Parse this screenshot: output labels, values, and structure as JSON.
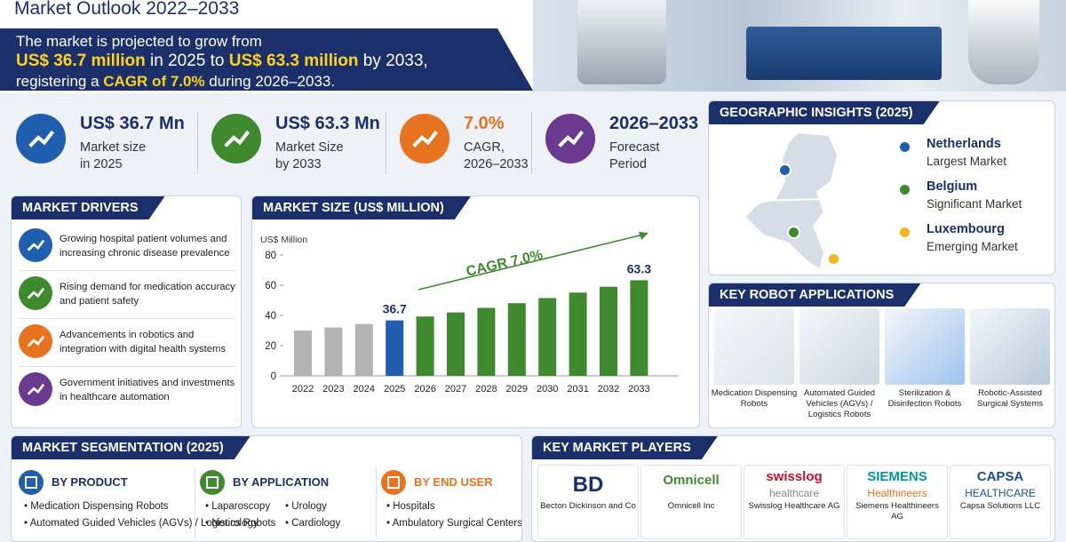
{
  "header": {
    "title": "Market Outlook 2022–2033",
    "lines": [
      [
        {
          "text": "The market is projected to grow from"
        }
      ],
      [
        {
          "text": "US$ 36.7 million",
          "highlight": true
        },
        {
          "text": " in 2025 to "
        },
        {
          "text": "US$ 63.3 million",
          "highlight": true
        },
        {
          "text": " by 2033,"
        }
      ],
      [
        {
          "text": "registering a "
        },
        {
          "text": "CAGR of 7.0%",
          "highlight": true
        },
        {
          "text": " during 2026–2033."
        }
      ]
    ]
  },
  "stats": [
    {
      "value": "US$ 36.7 Mn",
      "label": [
        "Market size",
        "in 2025"
      ],
      "color": "#1f5fae"
    },
    {
      "value": "US$ 63.3 Mn",
      "label": [
        "Market Size",
        "by 2033"
      ],
      "color": "#3f8a2e"
    },
    {
      "value": "7.0%",
      "label": [
        "CAGR,",
        "2026–2033"
      ],
      "color": "#e8731e"
    },
    {
      "value": "2026–2033",
      "label": [
        "Forecast",
        "Period"
      ],
      "color": "#6a3a8e"
    }
  ],
  "drivers": {
    "title": "MARKET DRIVERS",
    "items": [
      {
        "text": "Growing hospital patient volumes and increasing chronic disease prevalence",
        "color": "#1f5fae"
      },
      {
        "text": "Rising demand for medication accuracy and patient safety",
        "color": "#3f8a2e"
      },
      {
        "text": "Advancements in robotics and integration with digital health systems",
        "color": "#e8731e"
      },
      {
        "text": "Government initiatives and investments in healthcare automation",
        "color": "#6a3a8e"
      }
    ]
  },
  "chart_data": {
    "type": "bar",
    "title": "MARKET SIZE (US$ MILLION)",
    "y_label": "US$ Million",
    "categories": [
      "2022",
      "2023",
      "2024",
      "2025",
      "2026",
      "2027",
      "2028",
      "2029",
      "2030",
      "2031",
      "2032",
      "2033"
    ],
    "values": [
      30,
      32,
      34.3,
      36.7,
      39.3,
      42,
      45,
      48.1,
      51.5,
      55.1,
      59,
      63.3
    ],
    "value_labels": [
      null,
      null,
      null,
      "36.7",
      null,
      null,
      null,
      null,
      null,
      null,
      null,
      "63.3"
    ],
    "colors": [
      "#b3b3b3",
      "#b3b3b3",
      "#b3b3b3",
      "#1f5fae",
      "#3f8a2e",
      "#3f8a2e",
      "#3f8a2e",
      "#3f8a2e",
      "#3f8a2e",
      "#3f8a2e",
      "#3f8a2e",
      "#3f8a2e"
    ],
    "ylim": [
      0,
      85
    ],
    "yticks": [
      0,
      20,
      40,
      60,
      80
    ],
    "grid": false,
    "annotation": {
      "text": "CAGR 7.0%",
      "color": "#3f8a2e"
    }
  },
  "geography": {
    "title": "GEOGRAPHIC INSIGHTS (2025)",
    "items": [
      {
        "name": "Netherlands",
        "desc": "Largest Market",
        "color": "#1f5fae"
      },
      {
        "name": "Belgium",
        "desc": "Significant Market",
        "color": "#3f8a2e"
      },
      {
        "name": "Luxembourg",
        "desc": "Emerging Market",
        "color": "#f2b51c"
      }
    ]
  },
  "applications": {
    "title": "KEY ROBOT APPLICATIONS",
    "items": [
      "Medication Dispensing Robots",
      "Automated Guided Vehicles (AGVs) / Logistics Robots",
      "Sterilization & Disinfection Robots",
      "Robotic-Assisted Surgical Systems"
    ]
  },
  "segmentation": {
    "title": "MARKET SEGMENTATION (2025)",
    "groups": [
      {
        "title": "BY PRODUCT",
        "color": "#1f5fae",
        "items": [
          "Medication Dispensing Robots",
          "Automated Guided Vehicles (AGVs) / Logistics Robots"
        ]
      },
      {
        "title": "BY APPLICATION",
        "color": "#3f8a2e",
        "items": [
          "Laparoscopy",
          "Urology",
          "Neurology",
          "Cardiology"
        ]
      },
      {
        "title": "BY END USER",
        "color": "#e8731e",
        "items": [
          "Hospitals",
          "Ambulatory Surgical Centers"
        ]
      }
    ]
  },
  "players": {
    "title": "KEY MARKET PLAYERS",
    "items": [
      {
        "logo": [
          "BD"
        ],
        "colors": [
          "#1b2f6b"
        ],
        "name": "Becton Dickinson and Co"
      },
      {
        "logo": [
          "Omnicell"
        ],
        "colors": [
          "#3f8a2e"
        ],
        "name": "Omnicell Inc"
      },
      {
        "logo": [
          "swisslog",
          "healthcare"
        ],
        "colors": [
          "#c8102e",
          "#888888"
        ],
        "name": "Swisslog Healthcare AG"
      },
      {
        "logo": [
          "SIEMENS",
          "Healthineers"
        ],
        "colors": [
          "#009999",
          "#e8731e"
        ],
        "name": "Siemens Healthineers AG"
      },
      {
        "logo": [
          "CAPSA",
          "HEALTHCARE"
        ],
        "colors": [
          "#1b4f8e",
          "#1b4f8e"
        ],
        "name": "Capsa Solutions LLC"
      }
    ]
  }
}
